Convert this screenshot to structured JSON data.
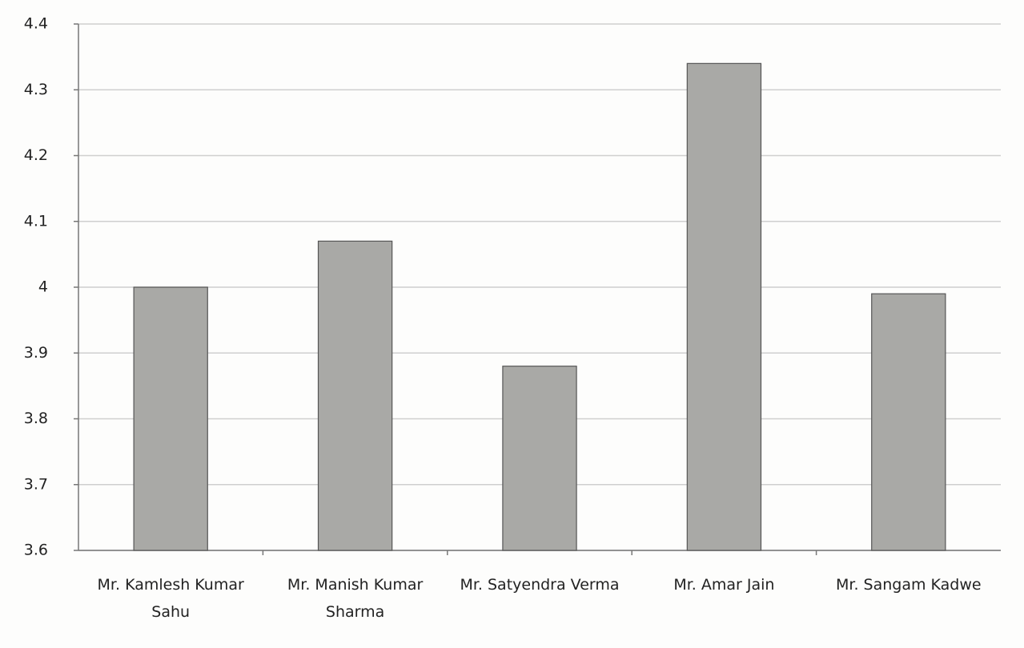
{
  "chart_data": {
    "type": "bar",
    "categories": [
      "Mr. Kamlesh Kumar Sahu",
      "Mr. Manish Kumar Sharma",
      "Mr. Satyendra Verma",
      "Mr. Amar Jain",
      "Mr. Sangam Kadwe"
    ],
    "values": [
      4.0,
      4.07,
      3.88,
      4.34,
      3.99
    ],
    "color": "#a9a9a6",
    "ylim": [
      3.6,
      4.4
    ],
    "yticks": [
      3.6,
      3.7,
      3.8,
      3.9,
      4,
      4.1,
      4.2,
      4.3,
      4.4
    ],
    "grid": true
  }
}
